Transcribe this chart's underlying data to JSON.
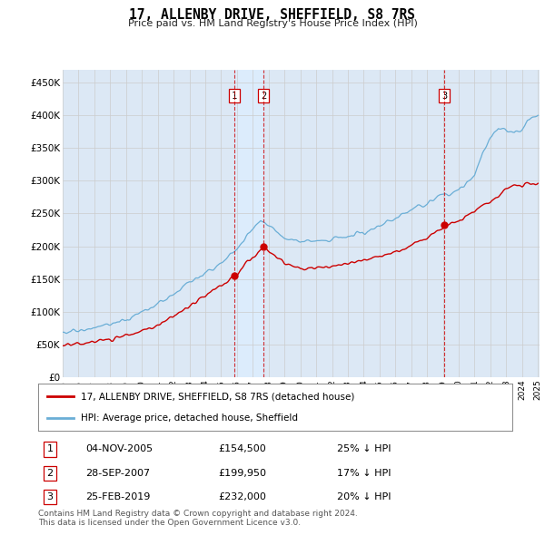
{
  "title": "17, ALLENBY DRIVE, SHEFFIELD, S8 7RS",
  "subtitle": "Price paid vs. HM Land Registry's House Price Index (HPI)",
  "ylim": [
    0,
    470000
  ],
  "yticks": [
    0,
    50000,
    100000,
    150000,
    200000,
    250000,
    300000,
    350000,
    400000,
    450000
  ],
  "ytick_labels": [
    "£0",
    "£50K",
    "£100K",
    "£150K",
    "£200K",
    "£250K",
    "£300K",
    "£350K",
    "£400K",
    "£450K"
  ],
  "hpi_color": "#6aaed6",
  "price_color": "#cc0000",
  "vline_color": "#cc0000",
  "shade_color": "#ddeeff",
  "grid_color": "#cccccc",
  "background_color": "#dce8f5",
  "legend_label_price": "17, ALLENBY DRIVE, SHEFFIELD, S8 7RS (detached house)",
  "legend_label_hpi": "HPI: Average price, detached house, Sheffield",
  "t1_year": 2005,
  "t1_month": 11,
  "t2_year": 2007,
  "t2_month": 9,
  "t3_year": 2019,
  "t3_month": 2,
  "t1_price": 154500,
  "t2_price": 199950,
  "t3_price": 232000,
  "transaction1_date": "04-NOV-2005",
  "transaction1_price": 154500,
  "transaction1_pct": "25% ↓ HPI",
  "transaction2_date": "28-SEP-2007",
  "transaction2_price": 199950,
  "transaction2_pct": "17% ↓ HPI",
  "transaction3_date": "25-FEB-2019",
  "transaction3_price": 232000,
  "transaction3_pct": "20% ↓ HPI",
  "footer": "Contains HM Land Registry data © Crown copyright and database right 2024.\nThis data is licensed under the Open Government Licence v3.0."
}
